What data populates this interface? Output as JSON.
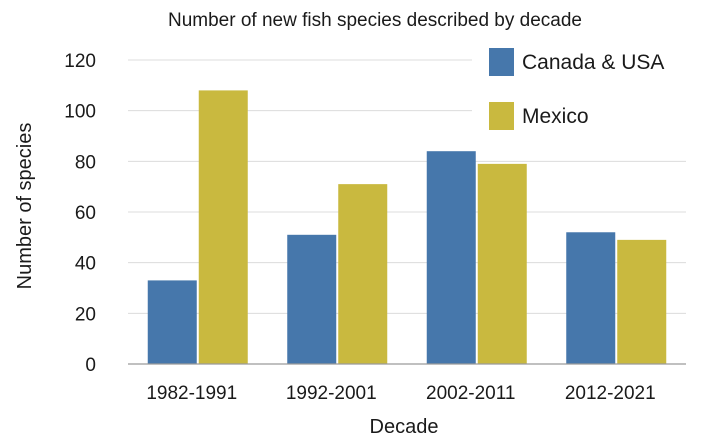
{
  "chart_data": {
    "type": "bar",
    "title": "Number of new fish species described by decade",
    "xlabel": "Decade",
    "ylabel": "Number of species",
    "categories": [
      "1982-1991",
      "1992-2001",
      "2002-2011",
      "2012-2021"
    ],
    "series": [
      {
        "name": "Canada & USA",
        "color": "#4677ab",
        "values": [
          33,
          51,
          84,
          52
        ]
      },
      {
        "name": "Mexico",
        "color": "#c9b93f",
        "values": [
          108,
          71,
          79,
          49
        ]
      }
    ],
    "ylim": [
      0,
      120
    ],
    "yticks": [
      0,
      20,
      40,
      60,
      80,
      100,
      120
    ],
    "grid": true,
    "legend_position": "top-right"
  }
}
